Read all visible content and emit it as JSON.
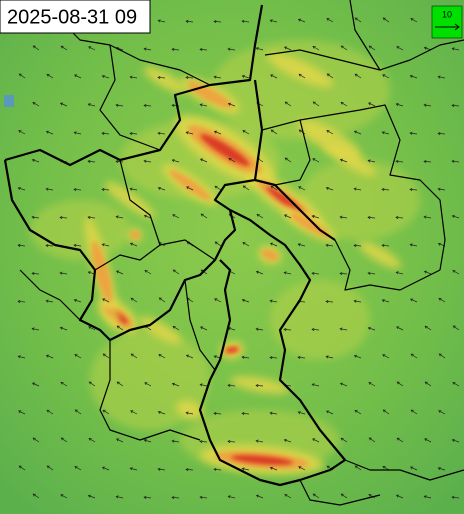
{
  "timestamp": "2025-08-31 09",
  "legend": {
    "label": "10"
  }
}
